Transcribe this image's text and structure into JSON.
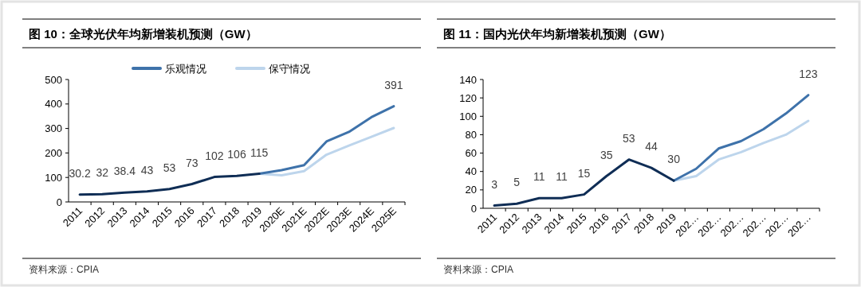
{
  "chart_data": [
    {
      "type": "line",
      "title": "图 10：全球光伏年均新增装机预测（GW）",
      "categories": [
        "2011",
        "2012",
        "2013",
        "2014",
        "2015",
        "2016",
        "2017",
        "2018",
        "2019",
        "2020E",
        "2021E",
        "2022E",
        "2023E",
        "2024E",
        "2025E"
      ],
      "series": [
        {
          "color": "#0f2d55",
          "values": [
            30.2,
            32,
            38.4,
            43,
            53,
            73,
            102,
            106,
            115,
            null,
            null,
            null,
            null,
            null,
            null
          ],
          "value_labels": [
            "30.2",
            "32",
            "38.4",
            "43",
            "53",
            "73",
            "102",
            "106",
            "115",
            null,
            null,
            null,
            null,
            null,
            null
          ]
        },
        {
          "name": "乐观情况",
          "color": "#3e72aa",
          "values": [
            null,
            null,
            null,
            null,
            null,
            null,
            null,
            null,
            115,
            130,
            150,
            247,
            286,
            346,
            391
          ],
          "value_labels": [
            null,
            null,
            null,
            null,
            null,
            null,
            null,
            null,
            null,
            null,
            null,
            null,
            null,
            null,
            "391"
          ]
        },
        {
          "name": "保守情况",
          "color": "#bdd5ec",
          "values": [
            null,
            null,
            null,
            null,
            null,
            null,
            null,
            null,
            115,
            109,
            126,
            193,
            230,
            266,
            302
          ]
        }
      ],
      "ylim": [
        0,
        500
      ],
      "yticks": [
        0,
        100,
        200,
        300,
        400,
        500
      ],
      "legend": "top",
      "annotations": [
        "资料来源：CPIA"
      ]
    },
    {
      "type": "line",
      "title": "图 11：国内光伏年均新增装机预测（GW）",
      "categories": [
        "2011",
        "2012",
        "2013",
        "2014",
        "2015",
        "2016",
        "2017",
        "2018",
        "2019",
        "202…",
        "202…",
        "202…",
        "202…",
        "202…",
        "202…"
      ],
      "series": [
        {
          "color": "#0f2d55",
          "values": [
            3,
            5,
            11,
            11,
            15,
            35,
            53,
            44,
            30,
            null,
            null,
            null,
            null,
            null,
            null
          ],
          "value_labels": [
            "3",
            "5",
            "11",
            "11",
            "15",
            "35",
            "53",
            "44",
            "30",
            null,
            null,
            null,
            null,
            null,
            null
          ]
        },
        {
          "color": "#3e72aa",
          "values": [
            null,
            null,
            null,
            null,
            null,
            null,
            null,
            null,
            30,
            43,
            65,
            73,
            86,
            103,
            123
          ],
          "value_labels": [
            null,
            null,
            null,
            null,
            null,
            null,
            null,
            null,
            null,
            null,
            null,
            null,
            null,
            null,
            "123"
          ]
        },
        {
          "color": "#bdd5ec",
          "values": [
            null,
            null,
            null,
            null,
            null,
            null,
            null,
            null,
            30,
            35,
            53,
            61,
            71,
            80,
            95
          ]
        }
      ],
      "ylim": [
        0,
        140
      ],
      "yticks": [
        0,
        20,
        40,
        60,
        80,
        100,
        120,
        140
      ],
      "legend": false,
      "annotations": [
        "资料来源：CPIA"
      ]
    }
  ]
}
